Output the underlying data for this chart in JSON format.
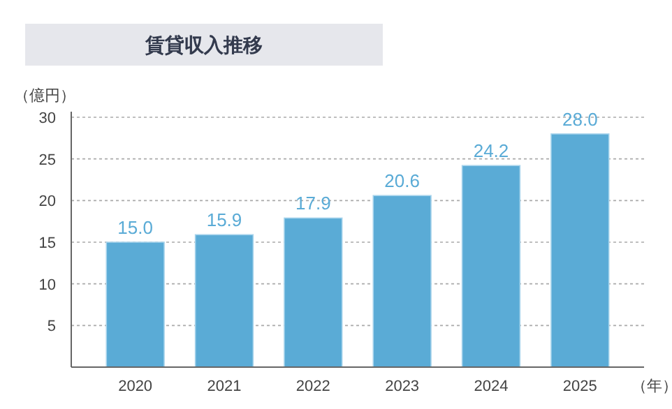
{
  "chart_data": {
    "type": "bar",
    "title": "賃貸収入推移",
    "ylabel": "（億円）",
    "xlabel": "（年）",
    "categories": [
      "2020",
      "2021",
      "2022",
      "2023",
      "2024",
      "2025"
    ],
    "values": [
      15.0,
      15.9,
      17.9,
      20.6,
      24.2,
      28.0
    ],
    "color": "#5aabd6",
    "ylim": [
      0,
      30
    ],
    "yticks": [
      5,
      10,
      15,
      20,
      25,
      30
    ],
    "value_labels": [
      "15.0",
      "15.9",
      "17.9",
      "20.6",
      "24.2",
      "28.0"
    ],
    "grid": "y"
  }
}
